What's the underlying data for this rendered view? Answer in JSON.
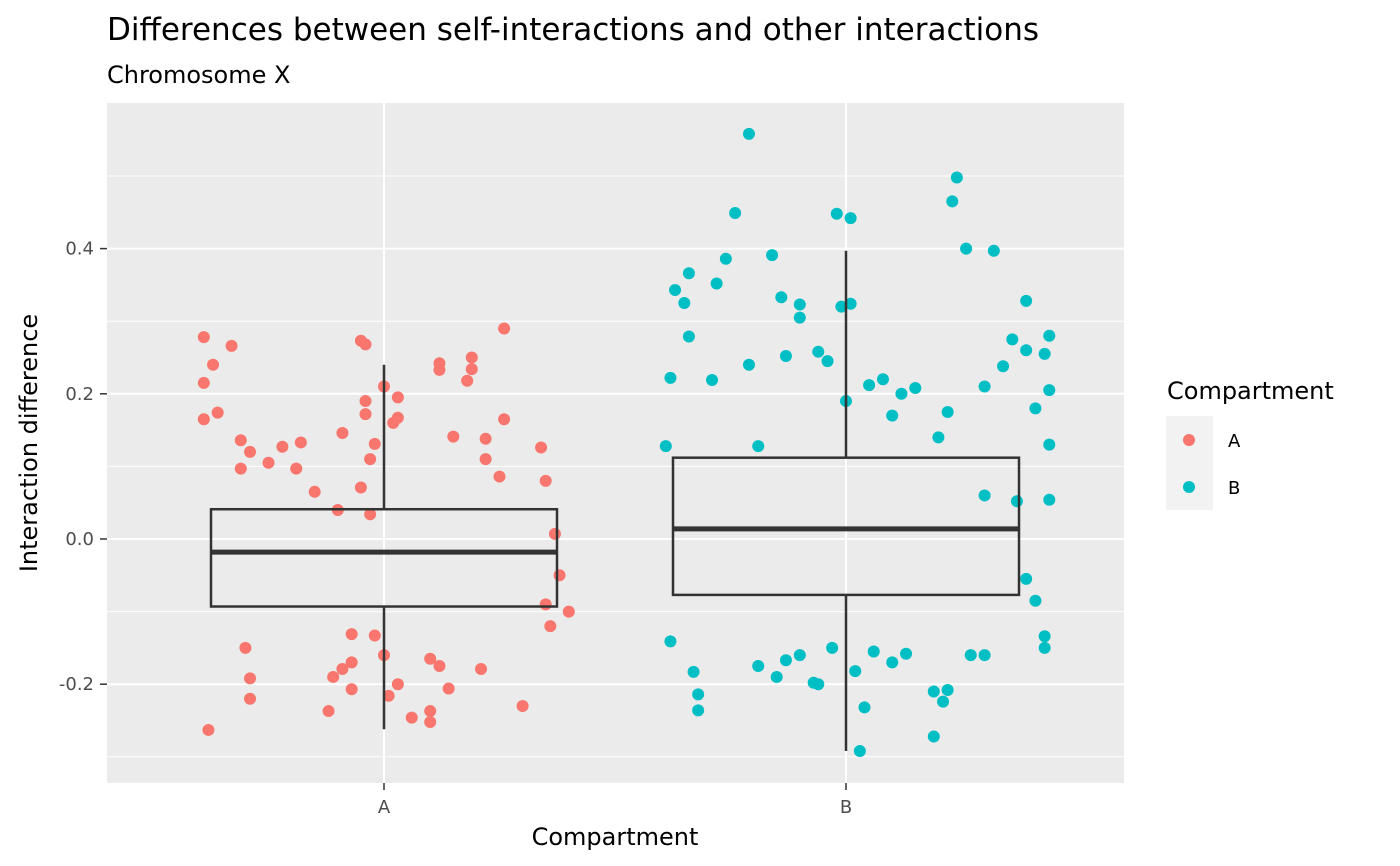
{
  "chart_data": {
    "type": "scatter",
    "overlay": "boxplot",
    "title": "Differences between self-interactions and other interactions",
    "subtitle": "Chromosome X",
    "xlabel": "Compartment",
    "ylabel": "Interaction difference",
    "categories": [
      "A",
      "B"
    ],
    "ylim": [
      -0.34,
      0.6
    ],
    "yticks": [
      -0.2,
      0.0,
      0.2,
      0.4
    ],
    "ytick_labels": [
      "-0.2",
      "0.0",
      "0.2",
      "0.4"
    ],
    "grid": true,
    "legend": {
      "title": "Compartment",
      "position": "right",
      "entries": [
        "A",
        "B"
      ]
    },
    "colors": {
      "A": "#F8766D",
      "B": "#00BFC4",
      "panel_bg": "#EBEBEB",
      "grid": "#FFFFFF",
      "box": "#333333"
    },
    "boxplots": [
      {
        "category": "A",
        "lower_whisker": -0.262,
        "q1": -0.093,
        "median": -0.018,
        "q3": 0.041,
        "upper_whisker": 0.24
      },
      {
        "category": "B",
        "lower_whisker": -0.292,
        "q1": -0.077,
        "median": 0.014,
        "q3": 0.112,
        "upper_whisker": 0.397
      }
    ],
    "series": [
      {
        "name": "A",
        "points": [
          [
            -0.39,
            0.278
          ],
          [
            -0.39,
            0.215
          ],
          [
            -0.39,
            0.165
          ],
          [
            -0.38,
            -0.263
          ],
          [
            -0.37,
            0.24
          ],
          [
            -0.36,
            0.174
          ],
          [
            -0.33,
            0.266
          ],
          [
            -0.31,
            0.136
          ],
          [
            -0.31,
            0.097
          ],
          [
            -0.29,
            0.12
          ],
          [
            -0.29,
            -0.192
          ],
          [
            -0.29,
            -0.22
          ],
          [
            -0.3,
            -0.15
          ],
          [
            -0.25,
            0.105
          ],
          [
            -0.22,
            0.127
          ],
          [
            -0.19,
            0.097
          ],
          [
            -0.18,
            0.133
          ],
          [
            -0.15,
            0.065
          ],
          [
            -0.09,
            0.146
          ],
          [
            -0.05,
            0.071
          ],
          [
            -0.07,
            -0.131
          ],
          [
            -0.07,
            -0.17
          ],
          [
            -0.11,
            -0.19
          ],
          [
            -0.07,
            -0.207
          ],
          [
            -0.12,
            -0.237
          ],
          [
            -0.09,
            -0.179
          ],
          [
            -0.1,
            0.04
          ],
          [
            -0.03,
            0.034
          ],
          [
            -0.05,
            0.273
          ],
          [
            -0.04,
            0.268
          ],
          [
            -0.04,
            0.19
          ],
          [
            -0.04,
            0.172
          ],
          [
            -0.03,
            0.11
          ],
          [
            0.0,
            0.21
          ],
          [
            0.03,
            0.195
          ],
          [
            0.02,
            0.16
          ],
          [
            0.03,
            0.167
          ],
          [
            -0.02,
            0.131
          ],
          [
            -0.02,
            -0.133
          ],
          [
            0.0,
            -0.16
          ],
          [
            0.01,
            -0.216
          ],
          [
            0.03,
            -0.2
          ],
          [
            0.06,
            -0.246
          ],
          [
            0.1,
            -0.237
          ],
          [
            0.1,
            -0.252
          ],
          [
            0.12,
            -0.175
          ],
          [
            0.1,
            -0.165
          ],
          [
            0.14,
            -0.206
          ],
          [
            0.12,
            0.233
          ],
          [
            0.12,
            0.242
          ],
          [
            0.19,
            0.25
          ],
          [
            0.18,
            0.218
          ],
          [
            0.19,
            0.234
          ],
          [
            0.15,
            0.141
          ],
          [
            0.22,
            0.138
          ],
          [
            0.22,
            0.11
          ],
          [
            0.25,
            0.086
          ],
          [
            0.26,
            0.165
          ],
          [
            0.26,
            0.29
          ],
          [
            0.21,
            -0.179
          ],
          [
            0.3,
            -0.23
          ],
          [
            0.35,
            -0.09
          ],
          [
            0.4,
            -0.1
          ],
          [
            0.36,
            -0.12
          ],
          [
            0.37,
            0.007
          ],
          [
            0.38,
            -0.05
          ],
          [
            0.34,
            0.126
          ],
          [
            0.35,
            0.08
          ]
        ]
      },
      {
        "name": "B",
        "points": [
          [
            0.61,
            0.128
          ],
          [
            0.62,
            0.222
          ],
          [
            0.63,
            0.343
          ],
          [
            0.62,
            -0.141
          ],
          [
            0.65,
            0.325
          ],
          [
            0.66,
            0.366
          ],
          [
            0.66,
            0.279
          ],
          [
            0.67,
            -0.183
          ],
          [
            0.68,
            -0.214
          ],
          [
            0.68,
            -0.236
          ],
          [
            0.71,
            0.219
          ],
          [
            0.72,
            0.352
          ],
          [
            0.74,
            0.386
          ],
          [
            0.76,
            0.449
          ],
          [
            0.79,
            0.558
          ],
          [
            0.79,
            0.24
          ],
          [
            0.81,
            0.128
          ],
          [
            0.84,
            0.391
          ],
          [
            0.86,
            0.333
          ],
          [
            0.87,
            0.252
          ],
          [
            0.9,
            0.323
          ],
          [
            0.9,
            0.305
          ],
          [
            0.94,
            0.258
          ],
          [
            0.96,
            0.245
          ],
          [
            0.98,
            0.448
          ],
          [
            0.99,
            0.32
          ],
          [
            1.0,
            0.19
          ],
          [
            1.01,
            0.442
          ],
          [
            1.01,
            0.324
          ],
          [
            1.05,
            0.212
          ],
          [
            1.08,
            0.22
          ],
          [
            1.1,
            0.17
          ],
          [
            1.12,
            0.2
          ],
          [
            1.15,
            0.208
          ],
          [
            1.2,
            0.14
          ],
          [
            1.23,
            0.465
          ],
          [
            1.24,
            0.498
          ],
          [
            1.22,
            0.175
          ],
          [
            1.26,
            0.4
          ],
          [
            1.32,
            0.397
          ],
          [
            1.3,
            0.21
          ],
          [
            1.34,
            0.238
          ],
          [
            1.36,
            0.275
          ],
          [
            1.39,
            0.328
          ],
          [
            1.39,
            0.26
          ],
          [
            1.41,
            0.18
          ],
          [
            1.43,
            0.255
          ],
          [
            1.44,
            0.28
          ],
          [
            1.44,
            0.205
          ],
          [
            1.44,
            0.13
          ],
          [
            0.81,
            -0.175
          ],
          [
            0.85,
            -0.19
          ],
          [
            0.87,
            -0.167
          ],
          [
            0.9,
            -0.16
          ],
          [
            0.93,
            -0.198
          ],
          [
            0.94,
            -0.2
          ],
          [
            0.97,
            -0.15
          ],
          [
            1.02,
            -0.182
          ],
          [
            1.03,
            -0.292
          ],
          [
            1.04,
            -0.232
          ],
          [
            1.06,
            -0.155
          ],
          [
            1.1,
            -0.17
          ],
          [
            1.13,
            -0.158
          ],
          [
            1.19,
            -0.21
          ],
          [
            1.19,
            -0.272
          ],
          [
            1.21,
            -0.224
          ],
          [
            1.22,
            -0.208
          ],
          [
            1.27,
            -0.16
          ],
          [
            1.3,
            -0.16
          ],
          [
            1.43,
            -0.15
          ],
          [
            1.43,
            -0.134
          ],
          [
            1.41,
            -0.085
          ],
          [
            1.39,
            -0.055
          ],
          [
            1.44,
            0.054
          ],
          [
            1.37,
            0.052
          ],
          [
            1.3,
            0.06
          ]
        ]
      }
    ]
  }
}
